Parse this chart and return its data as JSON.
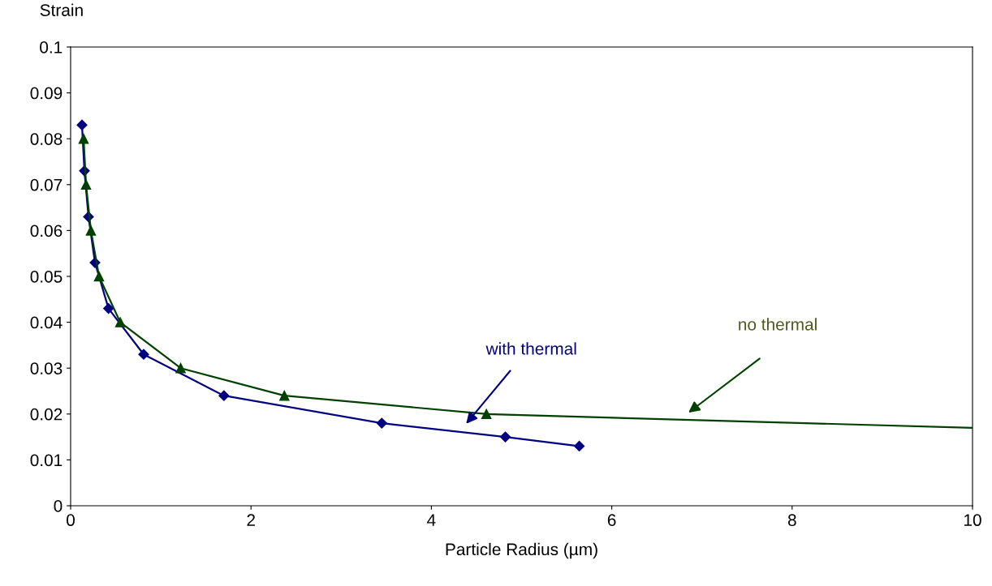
{
  "chart_data": {
    "type": "line",
    "xlabel": "Particle Radius (µm)",
    "ylabel": "Strain",
    "xlim": [
      0,
      10
    ],
    "xticks": [
      0,
      2,
      4,
      6,
      8,
      10
    ],
    "ylim": [
      0,
      0.1
    ],
    "yticks": [
      0,
      0.01,
      0.02,
      0.03,
      0.04,
      0.05,
      0.06,
      0.07,
      0.08,
      0.09,
      0.1
    ],
    "grid": false,
    "legend": false,
    "series": [
      {
        "color": "#000080",
        "marker": "diamond",
        "x": [
          0.126,
          0.153,
          0.198,
          0.27,
          0.42,
          0.81,
          1.7,
          3.45,
          4.82,
          5.64
        ],
        "values": [
          0.083,
          0.073,
          0.063,
          0.053,
          0.043,
          0.033,
          0.024,
          0.018,
          0.015,
          0.013
        ]
      },
      {
        "color": "#004000",
        "marker": "triangle",
        "x": [
          0.144,
          0.171,
          0.225,
          0.315,
          0.55,
          1.22,
          2.37,
          4.61
        ],
        "values": [
          0.08,
          0.07,
          0.06,
          0.05,
          0.04,
          0.03,
          0.024,
          0.02
        ]
      },
      {
        "color": "#004000",
        "marker": "none",
        "x": [
          4.61,
          6.87,
          10
        ],
        "values": [
          0.02,
          0.0187,
          0.017
        ]
      }
    ],
    "annotations": [
      "with thermal",
      "no thermal"
    ]
  }
}
